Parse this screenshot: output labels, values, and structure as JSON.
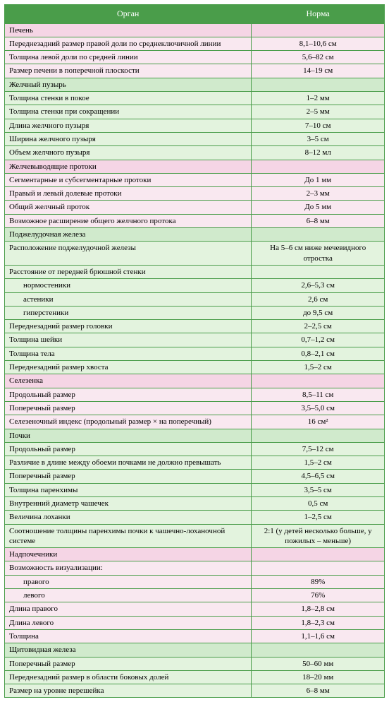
{
  "header": {
    "organ": "Орган",
    "norm": "Норма"
  },
  "sections": [
    {
      "style": "pink",
      "title": "Печень",
      "rows": [
        {
          "label": "Переднезадний размер правой доли по среднеключичной линии",
          "value": "8,1–10,6 см"
        },
        {
          "label": "Толщина левой доли по средней линии",
          "value": "5,6–82 см"
        },
        {
          "label": "Размер печени в поперечной плоскости",
          "value": "14–19 см"
        }
      ]
    },
    {
      "style": "green",
      "title": "Желчный пузырь",
      "rows": [
        {
          "label": "Толщина стенки в покое",
          "value": "1–2 мм"
        },
        {
          "label": "Толщина стенки при сокращении",
          "value": "2–5 мм"
        },
        {
          "label": "Длина желчного пузыря",
          "value": "7–10 см"
        },
        {
          "label": "Ширина желчного пузыря",
          "value": "3–5 см"
        },
        {
          "label": "Объем желчного пузыря",
          "value": "8–12 мл"
        }
      ]
    },
    {
      "style": "pink",
      "title": "Желчевыводящие протоки",
      "rows": [
        {
          "label": "Сегментарные и субсегментарные протоки",
          "value": "До 1 мм"
        },
        {
          "label": "Правый и левый долевые протоки",
          "value": "2–3 мм"
        },
        {
          "label": "Общий желчный проток",
          "value": "До 5 мм"
        },
        {
          "label": "Возможное расширение общего желчного протока",
          "value": "6–8 мм"
        }
      ]
    },
    {
      "style": "green",
      "title": "Поджелудочная железа",
      "rows": [
        {
          "label": "Расположение поджелудочной железы",
          "value": "На 5–6 см ниже мечевидного отростка"
        },
        {
          "label": "Расстояние от передней брюшной стенки",
          "value": ""
        },
        {
          "label": "нормостеники",
          "value": "2,6–5,3 см",
          "indent": 1
        },
        {
          "label": "астеники",
          "value": "2,6 см",
          "indent": 1
        },
        {
          "label": "гиперстеники",
          "value": "до 9,5 см",
          "indent": 1
        },
        {
          "label": "Переднезадний размер головки",
          "value": "2–2,5 см"
        },
        {
          "label": "Толщина шейки",
          "value": "0,7–1,2 см"
        },
        {
          "label": "Толщина тела",
          "value": "0,8–2,1 см"
        },
        {
          "label": "Переднезадний размер хвоста",
          "value": "1,5–2 см"
        }
      ]
    },
    {
      "style": "pink",
      "title": "Селезенка",
      "rows": [
        {
          "label": "Продольный размер",
          "value": "8,5–11 см"
        },
        {
          "label": "Поперечный размер",
          "value": "3,5–5,0 см"
        },
        {
          "label": "Селезеночный индекс (продольный размер × на поперечный)",
          "value": "16 см²"
        }
      ]
    },
    {
      "style": "green",
      "title": "Почки",
      "rows": [
        {
          "label": "Продольный размер",
          "value": "7,5–12 см"
        },
        {
          "label": "Различие в длине между обоеми почками не должно превышать",
          "value": "1,5–2 см"
        },
        {
          "label": "Поперечный размер",
          "value": "4,5–6,5 см"
        },
        {
          "label": "Толщина паренхимы",
          "value": "3,5–5 см"
        },
        {
          "label": "Внутренний диаметр чашечек",
          "value": "0,5 см"
        },
        {
          "label": "Величина лоханки",
          "value": "1–2,5 см"
        },
        {
          "label": "Соотношение толщины паренхимы почки к чашечно-лоханочной системе",
          "value": "2:1 (у детей несколько боль­ше, у пожилых – меньше)"
        }
      ]
    },
    {
      "style": "pink",
      "title": "Надпочечники",
      "rows": [
        {
          "label": "Возможность визуализации:",
          "value": ""
        },
        {
          "label": "правого",
          "value": "89%",
          "indent": 1
        },
        {
          "label": "левого",
          "value": "76%",
          "indent": 1
        },
        {
          "label": "Длина правого",
          "value": "1,8–2,8 см"
        },
        {
          "label": "Длина левого",
          "value": "1,8–2,3 см"
        },
        {
          "label": "Толщина",
          "value": "1,1–1,6 см"
        }
      ]
    },
    {
      "style": "green",
      "title": "Щитовидная железа",
      "rows": [
        {
          "label": "Поперечный размер",
          "value": "50–60 мм"
        },
        {
          "label": "Переднезадний размер в области боковых долей",
          "value": "18–20 мм"
        },
        {
          "label": "Размер на уровне перешейка",
          "value": "6–8 мм"
        }
      ]
    }
  ]
}
